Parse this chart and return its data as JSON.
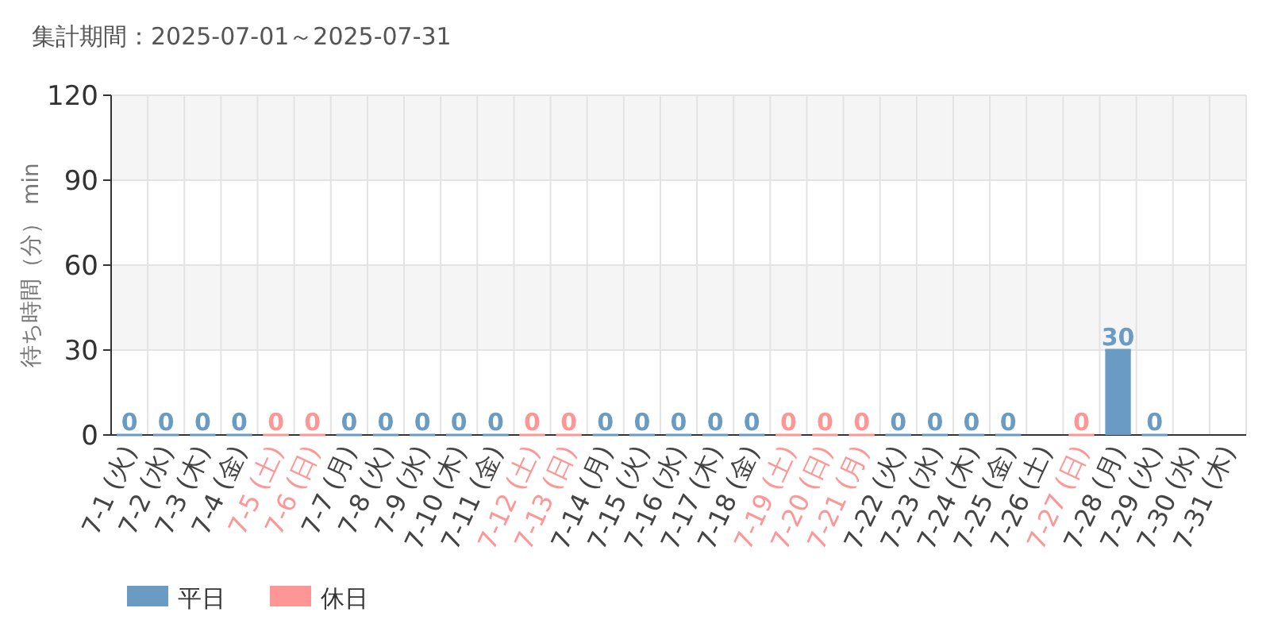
{
  "chart_data": {
    "type": "bar",
    "title": "集計期間：2025-07-01～2025-07-31",
    "ylabel": "待ち時間（分） min",
    "categories": [
      "7-1 (火)",
      "7-2 (水)",
      "7-3 (木)",
      "7-4 (金)",
      "7-5 (土)",
      "7-6 (日)",
      "7-7 (月)",
      "7-8 (火)",
      "7-9 (水)",
      "7-10 (木)",
      "7-11 (金)",
      "7-12 (土)",
      "7-13 (日)",
      "7-14 (月)",
      "7-15 (火)",
      "7-16 (水)",
      "7-17 (木)",
      "7-18 (金)",
      "7-19 (土)",
      "7-20 (日)",
      "7-21 (月)",
      "7-22 (火)",
      "7-23 (水)",
      "7-24 (木)",
      "7-25 (金)",
      "7-26 (土)",
      "7-27 (日)",
      "7-28 (月)",
      "7-29 (火)",
      "7-30 (水)",
      "7-31 (木)"
    ],
    "series": [
      {
        "name": "平日",
        "color": "#6a9bc3",
        "values": [
          0,
          0,
          0,
          0,
          null,
          null,
          0,
          0,
          0,
          0,
          0,
          null,
          null,
          0,
          0,
          0,
          0,
          0,
          null,
          null,
          null,
          0,
          0,
          0,
          0,
          null,
          null,
          30,
          0,
          null,
          null
        ]
      },
      {
        "name": "休日",
        "color": "#ff9696",
        "values": [
          null,
          null,
          null,
          null,
          0,
          0,
          null,
          null,
          null,
          null,
          null,
          0,
          0,
          null,
          null,
          null,
          null,
          null,
          0,
          0,
          0,
          null,
          null,
          null,
          null,
          null,
          0,
          null,
          null,
          null,
          null
        ]
      }
    ],
    "ylim": [
      0,
      120
    ],
    "yticks": [
      0,
      30,
      60,
      90,
      120
    ],
    "grid": true,
    "legend": "bottom left",
    "data_labels": true
  }
}
